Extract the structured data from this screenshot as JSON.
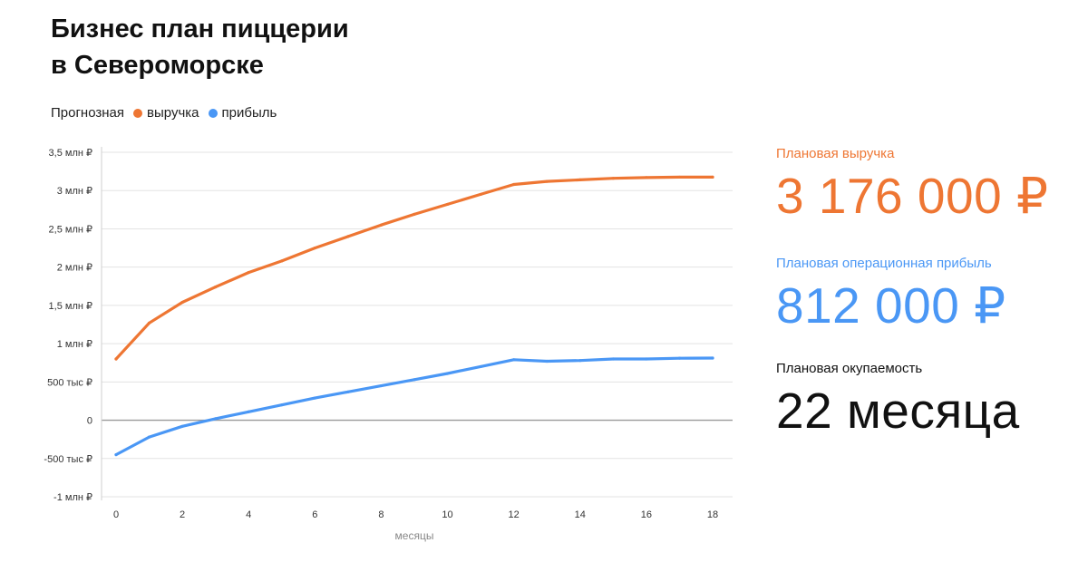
{
  "title_line1": "Бизнес план пиццерии",
  "title_line2": "в Североморске",
  "legend": {
    "prefix": "Прогнозная",
    "items": [
      {
        "label": "выручка",
        "color": "#ee7633"
      },
      {
        "label": "прибыль",
        "color": "#4a97f5"
      }
    ]
  },
  "kpis": {
    "revenue": {
      "label": "Плановая выручка",
      "value": "3 176 000 ₽",
      "color": "#ee7633"
    },
    "profit": {
      "label": "Плановая операционная прибыль",
      "value": "812 000 ₽",
      "color": "#4a97f5"
    },
    "payback": {
      "label": "Плановая окупаемость",
      "value": "22 месяца",
      "color": "#111111"
    }
  },
  "chart_data": {
    "type": "line",
    "title": "",
    "xlabel": "месяцы",
    "ylabel": "",
    "xlim": [
      0,
      18
    ],
    "ylim": [
      -1000000,
      3500000
    ],
    "grid": true,
    "x_ticks": [
      0,
      2,
      4,
      6,
      8,
      10,
      12,
      14,
      16,
      18
    ],
    "y_ticks": [
      {
        "value": 3500000,
        "label": "3,5 млн ₽"
      },
      {
        "value": 3000000,
        "label": "3 млн ₽"
      },
      {
        "value": 2500000,
        "label": "2,5 млн ₽"
      },
      {
        "value": 2000000,
        "label": "2 млн ₽"
      },
      {
        "value": 1500000,
        "label": "1,5 млн ₽"
      },
      {
        "value": 1000000,
        "label": "1 млн ₽"
      },
      {
        "value": 500000,
        "label": "500 тыс ₽"
      },
      {
        "value": 0,
        "label": "0"
      },
      {
        "value": -500000,
        "label": "-500 тыс ₽"
      },
      {
        "value": -1000000,
        "label": "-1 млн ₽"
      }
    ],
    "series": [
      {
        "name": "выручка",
        "color": "#ee7633",
        "x": [
          0,
          1,
          2,
          3,
          4,
          5,
          6,
          7,
          8,
          9,
          10,
          11,
          12,
          13,
          14,
          15,
          16,
          17,
          18
        ],
        "values": [
          800000,
          1270000,
          1540000,
          1740000,
          1930000,
          2080000,
          2250000,
          2400000,
          2550000,
          2690000,
          2820000,
          2950000,
          3080000,
          3120000,
          3140000,
          3160000,
          3170000,
          3175000,
          3176000
        ]
      },
      {
        "name": "прибыль",
        "color": "#4a97f5",
        "x": [
          0,
          1,
          2,
          3,
          4,
          5,
          6,
          7,
          8,
          9,
          10,
          11,
          12,
          13,
          14,
          15,
          16,
          17,
          18
        ],
        "values": [
          -450000,
          -220000,
          -80000,
          20000,
          110000,
          200000,
          290000,
          370000,
          450000,
          530000,
          610000,
          700000,
          790000,
          770000,
          780000,
          800000,
          800000,
          810000,
          812000
        ]
      }
    ]
  }
}
